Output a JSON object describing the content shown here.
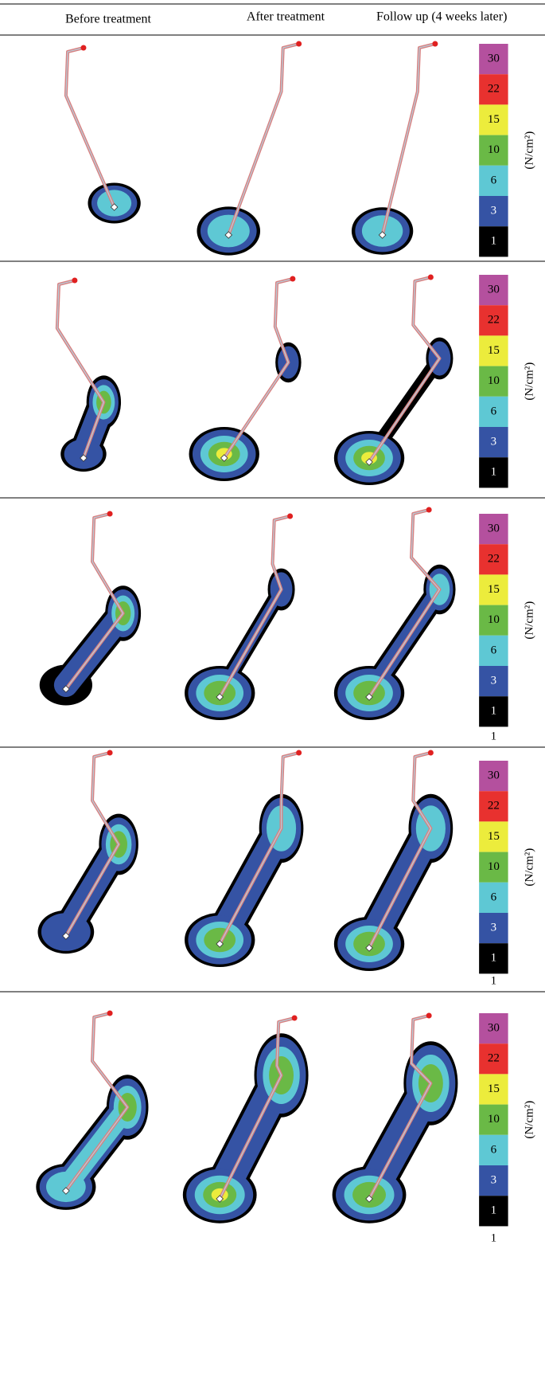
{
  "header": {
    "columns": [
      "Before treatment",
      "After treatment",
      "Follow up (4 weeks later)"
    ]
  },
  "legend_colors": [
    "#b4509e",
    "#e8312f",
    "#ecec3c",
    "#6ab946",
    "#5ec8d4",
    "#3553a4",
    "#000000"
  ],
  "rows": [
    {
      "legend": [
        "30",
        "22",
        "15",
        "10",
        "6",
        "3",
        "1"
      ],
      "unit": "(N/cm²)"
    },
    {
      "legend": [
        "30",
        "22",
        "15",
        "10",
        "6",
        "3",
        "1"
      ],
      "unit": "(N/cm²)"
    },
    {
      "legend": [
        "30",
        "22",
        "15",
        "10",
        "6",
        "3",
        "1"
      ],
      "unit": "(N/cm²)",
      "footnote": "1"
    },
    {
      "legend": [
        "30",
        "22",
        "15",
        "10",
        "6",
        "3",
        "1"
      ],
      "unit": "(N/cm²)",
      "footnote": "1"
    },
    {
      "legend": [
        "30",
        "22",
        "15",
        "10",
        "6",
        "3",
        "1"
      ],
      "unit": "(N/cm²)",
      "footnote": "1"
    }
  ]
}
